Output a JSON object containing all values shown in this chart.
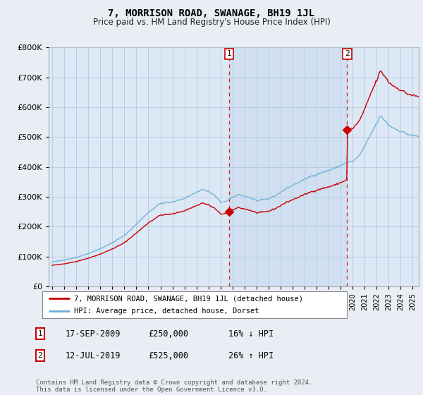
{
  "title": "7, MORRISON ROAD, SWANAGE, BH19 1JL",
  "subtitle": "Price paid vs. HM Land Registry's House Price Index (HPI)",
  "legend_line1": "7, MORRISON ROAD, SWANAGE, BH19 1JL (detached house)",
  "legend_line2": "HPI: Average price, detached house, Dorset",
  "sale1_year": 2009.708,
  "sale1_price": 250000,
  "sale1_label": "17-SEP-2009",
  "sale1_pct": "16% ↓ HPI",
  "sale2_year": 2019.542,
  "sale2_price": 525000,
  "sale2_label": "12-JUL-2019",
  "sale2_pct": "26% ↑ HPI",
  "footer": "Contains HM Land Registry data © Crown copyright and database right 2024.\nThis data is licensed under the Open Government Licence v3.0.",
  "ylim": [
    0,
    800000
  ],
  "yticks": [
    0,
    100000,
    200000,
    300000,
    400000,
    500000,
    600000,
    700000,
    800000
  ],
  "hpi_color": "#6baed6",
  "price_color": "#cc0000",
  "background_color": "#e8eef4",
  "plot_bg_color": "#dce8f5",
  "shade_color": "#ccddf0",
  "grid_color": "#b0c4d8"
}
